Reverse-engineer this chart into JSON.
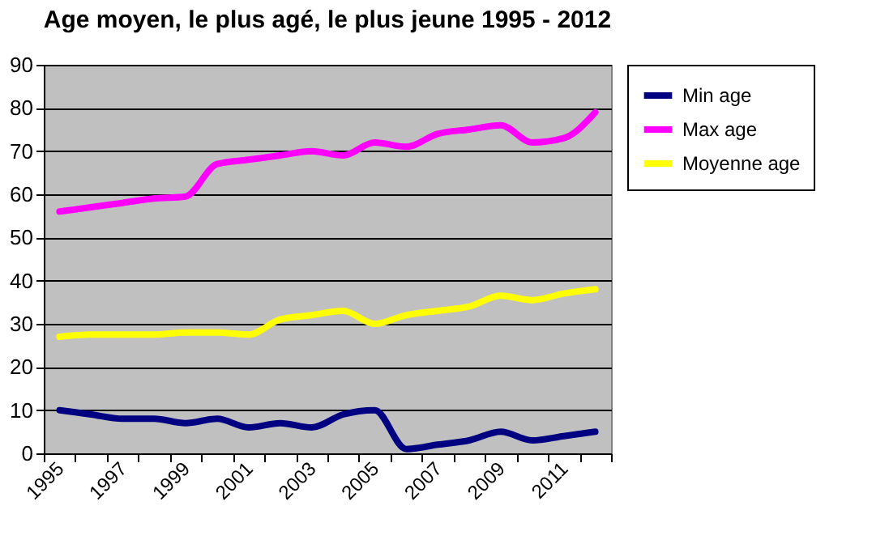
{
  "chart_data": {
    "type": "line",
    "title": "Age moyen, le plus agé, le plus jeune 1995 - 2012",
    "categories": [
      "1995",
      null,
      "1997",
      null,
      "1999",
      null,
      "2001",
      null,
      "2003",
      null,
      "2005",
      null,
      "2007",
      null,
      "2009",
      null,
      "2011",
      null
    ],
    "series": [
      {
        "name": "Min age",
        "color": "#000080",
        "values": [
          10,
          9,
          8,
          8,
          7,
          8,
          6,
          7,
          6,
          9,
          10,
          1,
          2,
          3,
          5,
          3,
          4,
          5
        ]
      },
      {
        "name": "Max age",
        "color": "#ff00ff",
        "values": [
          56,
          57,
          58,
          59,
          59.5,
          67,
          68,
          69,
          70,
          69,
          72,
          71,
          74,
          75,
          76,
          72,
          73,
          79
        ]
      },
      {
        "name": "Moyenne age",
        "color": "#ffff00",
        "values": [
          27,
          27.5,
          27.5,
          27.5,
          28,
          28,
          27.5,
          31,
          32,
          33,
          30,
          32,
          33,
          34,
          36.5,
          35.5,
          37,
          38
        ]
      }
    ],
    "ylim": [
      0,
      90
    ],
    "yticks": [
      0,
      10,
      20,
      30,
      40,
      50,
      60,
      70,
      80,
      90
    ],
    "grid": "y",
    "legend": "right",
    "marker": "none",
    "line_style": "solid"
  }
}
